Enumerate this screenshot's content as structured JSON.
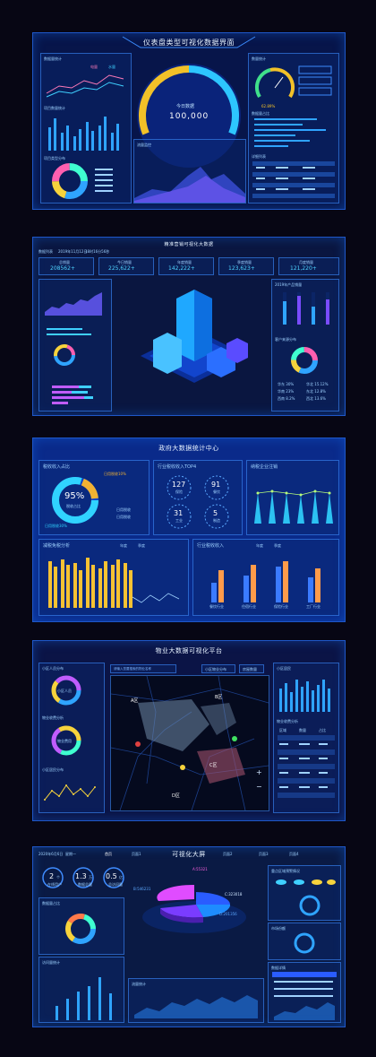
{
  "panel1": {
    "title": "仪表盘类型可视化数据界面",
    "gauge_label": "今日数据",
    "gauge_value": "100,000",
    "left_titles": [
      "数据量统计",
      "项目数量统计",
      "项目类型分布"
    ],
    "legend": [
      "电量",
      "水量"
    ],
    "center_bottom_title": "流量监控",
    "right_gauge_title": "数量统计",
    "right_gauge_value": "62.89%",
    "right_progress_title": "数据量占比",
    "right_table_title": "详细列表"
  },
  "panel2": {
    "title": "精准营销可视化大数据",
    "header_left": "数据列表",
    "header_date": "2019年11月12日",
    "header_time": "18时16分56秒",
    "stats": [
      {
        "label": "总销量",
        "value": "208562+"
      },
      {
        "label": "今日销量",
        "value": "225,622+"
      },
      {
        "label": "年度销量",
        "value": "142,222+"
      },
      {
        "label": "季度销量",
        "value": "123,623+"
      },
      {
        "label": "月度销量",
        "value": "121,220+"
      }
    ],
    "right_top_title": "2019年产品销量",
    "right_bottom_title": "客户来源分布",
    "legend_items": [
      "华东 30%",
      "华北 15.12%",
      "华南 23%",
      "东北 12.8%",
      "西南 8.2%",
      "西北 13.6%"
    ]
  },
  "panel3": {
    "title": "政府大数据统计中心",
    "tax_title": "税收收入占比",
    "donut_value": "95%",
    "donut_label": "税收占比",
    "donut_top": "日用税收10%",
    "donut_bottom": "日用税收30%",
    "legend": [
      "日用税收",
      "日用税收"
    ],
    "top4_title": "行业税收收入TOP4",
    "top4": [
      {
        "value": "127",
        "label": "保险"
      },
      {
        "value": "91",
        "label": "餐饮"
      },
      {
        "value": "31",
        "label": "工业"
      },
      {
        "value": "5",
        "label": "制造"
      }
    ],
    "reg_title": "纳税企业注销",
    "bottom_left_title": "减税免税分析",
    "bottom_left_legend": [
      "年度",
      "季度"
    ],
    "bottom_right_title": "行业税收收入",
    "bottom_right_legend": [
      "年度",
      "季度"
    ],
    "bottom_right_cats": [
      "餐饮行业",
      "住宿行业",
      "保险行业",
      "工厂行业"
    ]
  },
  "panel4": {
    "title": "物业大数据可视化平台",
    "search_placeholder": "请输入您要搜索的物业名称",
    "btn1": "小区物业分布",
    "btn2": "房屋数量",
    "left_titles": [
      "小区人员分布",
      "物业收费分析",
      "小区居民分布"
    ],
    "ring1": "小区人员",
    "ring2": "物业费用",
    "areas": [
      "A区",
      "B区",
      "C区",
      "D区"
    ],
    "right_titles": [
      "小区居民",
      "物业收费分析"
    ],
    "table_headers": [
      "区域",
      "数量",
      "占比"
    ]
  },
  "panel5": {
    "title": "可视化大屏",
    "date": "2020年6月6日",
    "weekday": "星期一",
    "tabs": [
      "首页",
      "页面1",
      "页面2",
      "页面3",
      "页面4"
    ],
    "kpis": [
      {
        "value": "2",
        "unit": "个",
        "label": "在线用户"
      },
      {
        "value": "1.3",
        "unit": "万",
        "label": "数据总量"
      },
      {
        "value": "0.5",
        "unit": "亿",
        "label": "总访问量"
      }
    ],
    "pie_labels": [
      "A:55321",
      "B:546231",
      "C:323018",
      "D:201356"
    ],
    "left_titles": [
      "数据量占比",
      "访问量统计"
    ],
    "right_top_title": "重点区域预警情况",
    "right_mid_title": "市场份额",
    "right_table_title": "数据详情",
    "bottom_titles": [
      "流量统计",
      "业务统计",
      "活跃度统计"
    ]
  }
}
